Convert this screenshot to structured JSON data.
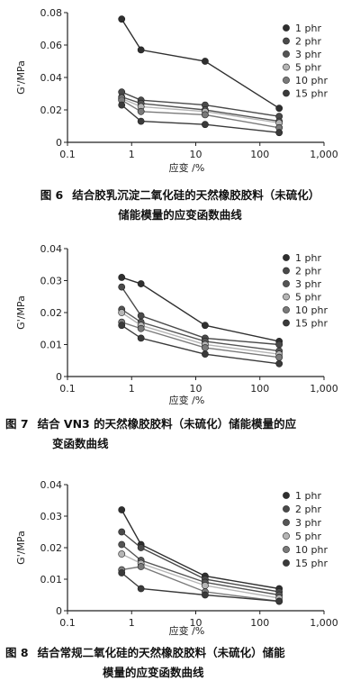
{
  "chart_data": [
    {
      "type": "line",
      "xscale": "log",
      "xlim": [
        0.1,
        1000
      ],
      "ylim": [
        0,
        0.08
      ],
      "xticks": [
        "0.1",
        "1",
        "10",
        "100",
        "1,000"
      ],
      "yticks": [
        "0",
        "0.02",
        "0.04",
        "0.06",
        "0.08"
      ],
      "xlabel": "应变 /%",
      "ylabel": "G'/MPa",
      "legend_position": "top-right",
      "grid": false,
      "x": [
        0.7,
        1.4,
        14,
        200
      ],
      "series": [
        {
          "name": "1 phr",
          "values": [
            0.076,
            0.057,
            0.05,
            0.021
          ],
          "color": "#2f2f2f"
        },
        {
          "name": "2 phr",
          "values": [
            0.031,
            0.026,
            0.023,
            0.016
          ],
          "color": "#4a4a4a"
        },
        {
          "name": "3 phr",
          "values": [
            0.028,
            0.024,
            0.02,
            0.013
          ],
          "color": "#555555"
        },
        {
          "name": "5 phr",
          "values": [
            0.027,
            0.022,
            0.019,
            0.012
          ],
          "color": "#b5b5b5"
        },
        {
          "name": "10 phr",
          "values": [
            0.026,
            0.019,
            0.017,
            0.009
          ],
          "color": "#7a7a7a"
        },
        {
          "name": "15 phr",
          "values": [
            0.023,
            0.013,
            0.011,
            0.006
          ],
          "color": "#3a3a3a"
        }
      ]
    },
    {
      "type": "line",
      "xscale": "log",
      "xlim": [
        0.1,
        1000
      ],
      "ylim": [
        0,
        0.04
      ],
      "xticks": [
        "0.1",
        "1",
        "10",
        "100",
        "1,000"
      ],
      "yticks": [
        "0",
        "0.01",
        "0.02",
        "0.03",
        "0.04"
      ],
      "xlabel": "应变 /%",
      "ylabel": "G'/MPa",
      "legend_position": "top-right",
      "grid": false,
      "x": [
        0.7,
        1.4,
        14,
        200
      ],
      "series": [
        {
          "name": "1 phr",
          "values": [
            0.031,
            0.029,
            0.016,
            0.011
          ],
          "color": "#2f2f2f"
        },
        {
          "name": "2 phr",
          "values": [
            0.028,
            0.019,
            0.012,
            0.01
          ],
          "color": "#4a4a4a"
        },
        {
          "name": "3 phr",
          "values": [
            0.021,
            0.017,
            0.011,
            0.008
          ],
          "color": "#555555"
        },
        {
          "name": "5 phr",
          "values": [
            0.02,
            0.016,
            0.01,
            0.007
          ],
          "color": "#b5b5b5"
        },
        {
          "name": "10 phr",
          "values": [
            0.017,
            0.015,
            0.009,
            0.006
          ],
          "color": "#7a7a7a"
        },
        {
          "name": "15 phr",
          "values": [
            0.016,
            0.012,
            0.007,
            0.004
          ],
          "color": "#3a3a3a"
        }
      ]
    },
    {
      "type": "line",
      "xscale": "log",
      "xlim": [
        0.1,
        1000
      ],
      "ylim": [
        0,
        0.04
      ],
      "xticks": [
        "0.1",
        "1",
        "10",
        "100",
        "1,000"
      ],
      "yticks": [
        "0",
        "0.01",
        "0.02",
        "0.03",
        "0.04"
      ],
      "xlabel": "应变 /%",
      "ylabel": "G'/MPa",
      "legend_position": "top-right",
      "grid": false,
      "x": [
        0.7,
        1.4,
        14,
        200
      ],
      "series": [
        {
          "name": "1 phr",
          "values": [
            0.032,
            0.021,
            0.011,
            0.007
          ],
          "color": "#2f2f2f"
        },
        {
          "name": "2 phr",
          "values": [
            0.025,
            0.02,
            0.01,
            0.006
          ],
          "color": "#4a4a4a"
        },
        {
          "name": "3 phr",
          "values": [
            0.021,
            0.016,
            0.009,
            0.005
          ],
          "color": "#555555"
        },
        {
          "name": "5 phr",
          "values": [
            0.018,
            0.015,
            0.008,
            0.004
          ],
          "color": "#b5b5b5"
        },
        {
          "name": "10 phr",
          "values": [
            0.013,
            0.014,
            0.006,
            0.003
          ],
          "color": "#7a7a7a"
        },
        {
          "name": "15 phr",
          "values": [
            0.012,
            0.007,
            0.005,
            0.003
          ],
          "color": "#3a3a3a"
        }
      ]
    }
  ],
  "captions": [
    {
      "num": "图 6",
      "line1": "结合胶乳沉淀二氧化硅的天然橡胶胶料（未硫化）",
      "line2": "储能模量的应变函数曲线"
    },
    {
      "num": "图 7",
      "line1": "结合 VN3 的天然橡胶胶料（未硫化）储能模量的应",
      "line2": "变函数曲线"
    },
    {
      "num": "图 8",
      "line1": "结合常规二氧化硅的天然橡胶胶料（未硫化）储能",
      "line2": "模量的应变函数曲线"
    }
  ]
}
